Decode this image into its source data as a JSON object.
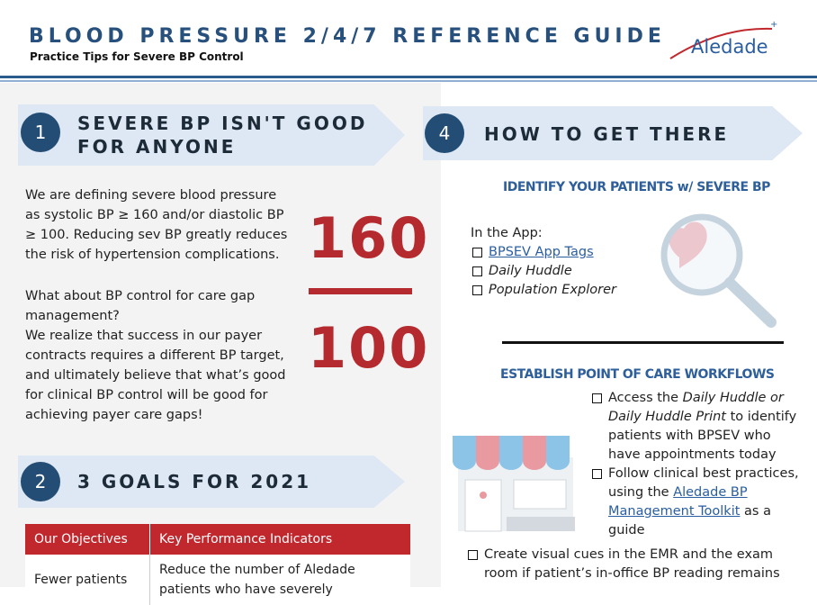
{
  "header": {
    "title": "BLOOD PRESSURE 2/4/7 REFERENCE GUIDE",
    "subtitle": "Practice Tips for Severe BP Control",
    "logo": "Aledade"
  },
  "section1": {
    "number": "1",
    "title_lines": [
      "SEVERE BP ISN'T GOOD",
      "FOR ANYONE"
    ],
    "paragraph1": "We are defining severe blood pressure as systolic BP ≥  160 and/or diastolic BP ≥ 100. Reducing sev BP greatly reduces the risk of hypertension complications.",
    "question": "What about BP control for care gap management?",
    "paragraph2": "We realize that success in our payer contracts requires a different BP target, and ultimately believe that what’s good for clinical BP control will be good for achieving payer care gaps!",
    "systolic": "160",
    "diastolic": "100"
  },
  "section2": {
    "number": "2",
    "title": "3 GOALS FOR 2021",
    "table": {
      "headers": [
        "Our Objectives",
        "Key Performance Indicators"
      ],
      "rows": [
        [
          "Fewer patients",
          "Reduce the number of Aledade patients who have severely"
        ]
      ]
    }
  },
  "section4": {
    "number": "4",
    "title": "HOW TO GET THERE",
    "identify": {
      "heading": "IDENTIFY YOUR PATIENTS w/ SEVERE BP",
      "intro": "In the App:",
      "items": [
        "BPSEV App Tags",
        "Daily Huddle",
        "Population Explorer"
      ]
    },
    "workflows": {
      "heading": "ESTABLISH POINT OF CARE WORKFLOWS",
      "items": [
        [
          "Access the ",
          "Daily Huddle or Daily Huddle Print",
          " to identify patients with BPSEV who have appointments today"
        ],
        [
          "Follow clinical best practices, using the ",
          "Aledade BP Management Toolkit",
          " as a guide"
        ],
        [
          "Create visual cues in the EMR and the exam room if patient’s in-office BP reading remains"
        ]
      ]
    }
  }
}
